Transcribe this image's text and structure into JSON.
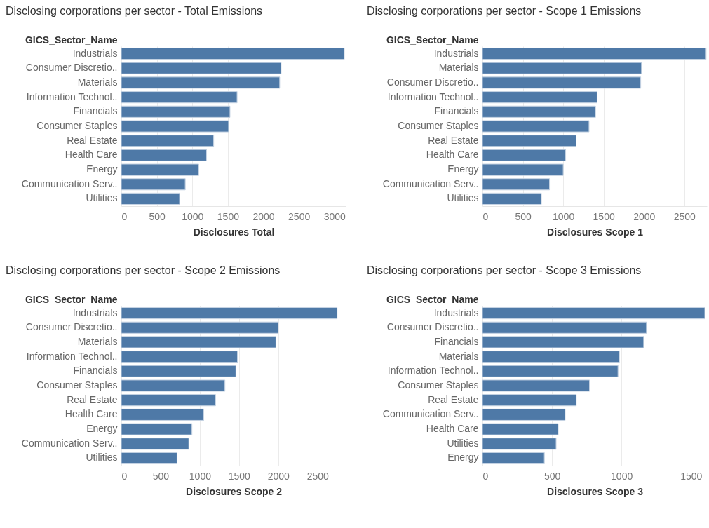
{
  "chart_data": [
    {
      "type": "bar",
      "orientation": "horizontal",
      "title": "Disclosing corporations per sector - Total Emissions",
      "xlabel": "Disclosures Total",
      "ylabel": "GICS_Sector_Name",
      "categories": [
        "Industrials",
        "Consumer Discretio..",
        "Materials",
        "Information Technol..",
        "Financials",
        "Consumer Staples",
        "Real Estate",
        "Health Care",
        "Energy",
        "Communication Serv..",
        "Utilities"
      ],
      "values": [
        3140,
        2250,
        2230,
        1630,
        1530,
        1510,
        1300,
        1200,
        1090,
        900,
        820
      ],
      "color": "#4e79a7",
      "xlim": [
        0,
        3160
      ],
      "xticks": [
        0,
        500,
        1000,
        1500,
        2000,
        2500,
        3000
      ],
      "grid": "x"
    },
    {
      "type": "bar",
      "orientation": "horizontal",
      "title": "Disclosing corporations per sector - Scope 1 Emissions",
      "xlabel": "Disclosures Scope 1",
      "ylabel": "GICS_Sector_Name",
      "categories": [
        "Industrials",
        "Materials",
        "Consumer Discretio..",
        "Information Technol..",
        "Financials",
        "Consumer Staples",
        "Real Estate",
        "Health Care",
        "Energy",
        "Communication Serv..",
        "Utilities"
      ],
      "values": [
        2770,
        1970,
        1960,
        1420,
        1400,
        1320,
        1160,
        1030,
        1000,
        830,
        730
      ],
      "color": "#4e79a7",
      "xlim": [
        0,
        2780
      ],
      "xticks": [
        0,
        500,
        1000,
        1500,
        2000,
        2500
      ],
      "grid": "x"
    },
    {
      "type": "bar",
      "orientation": "horizontal",
      "title": "Disclosing corporations per sector - Scope 2 Emissions",
      "xlabel": "Disclosures Scope 2",
      "ylabel": "GICS_Sector_Name",
      "categories": [
        "Industrials",
        "Consumer Discretio..",
        "Materials",
        "Information Technol..",
        "Financials",
        "Consumer Staples",
        "Real Estate",
        "Health Care",
        "Energy",
        "Communication Serv..",
        "Utilities"
      ],
      "values": [
        2750,
        2000,
        1970,
        1480,
        1460,
        1320,
        1200,
        1050,
        900,
        860,
        710
      ],
      "color": "#4e79a7",
      "xlim": [
        0,
        2860
      ],
      "xticks": [
        0,
        500,
        1000,
        1500,
        2000,
        2500
      ],
      "grid": "x"
    },
    {
      "type": "bar",
      "orientation": "horizontal",
      "title": "Disclosing corporations per sector - Scope 3 Emissions",
      "xlabel": "Disclosures Scope 3",
      "ylabel": "GICS_Sector_Name",
      "categories": [
        "Industrials",
        "Consumer Discretio..",
        "Financials",
        "Materials",
        "Information Technol..",
        "Consumer Staples",
        "Real Estate",
        "Communication Serv..",
        "Health Care",
        "Utilities",
        "Energy"
      ],
      "values": [
        1600,
        1180,
        1160,
        985,
        975,
        770,
        675,
        595,
        545,
        530,
        445
      ],
      "color": "#4e79a7",
      "xlim": [
        0,
        1615
      ],
      "xticks": [
        0,
        500,
        1000,
        1500
      ],
      "grid": "x"
    }
  ]
}
